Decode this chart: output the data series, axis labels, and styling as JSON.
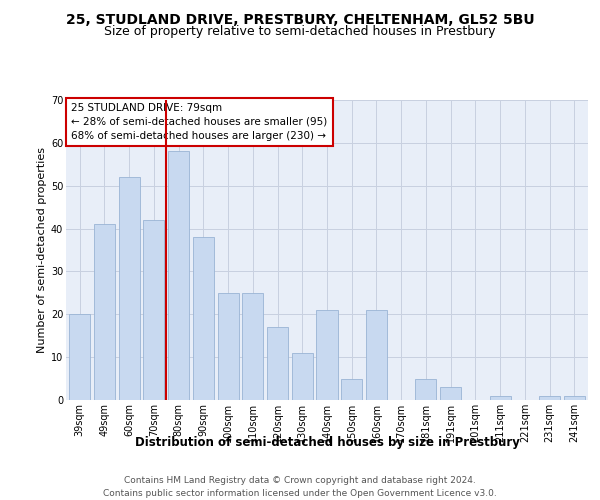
{
  "title": "25, STUDLAND DRIVE, PRESTBURY, CHELTENHAM, GL52 5BU",
  "subtitle": "Size of property relative to semi-detached houses in Prestbury",
  "xlabel": "Distribution of semi-detached houses by size in Prestbury",
  "ylabel": "Number of semi-detached properties",
  "categories": [
    "39sqm",
    "49sqm",
    "60sqm",
    "70sqm",
    "80sqm",
    "90sqm",
    "100sqm",
    "110sqm",
    "120sqm",
    "130sqm",
    "140sqm",
    "150sqm",
    "160sqm",
    "170sqm",
    "181sqm",
    "191sqm",
    "201sqm",
    "211sqm",
    "221sqm",
    "231sqm",
    "241sqm"
  ],
  "values": [
    20,
    41,
    52,
    42,
    58,
    38,
    25,
    25,
    17,
    11,
    21,
    5,
    21,
    0,
    5,
    3,
    0,
    1,
    0,
    1,
    1
  ],
  "bar_color": "#c8d9f0",
  "bar_edge_color": "#9ab4d4",
  "vline_x": 3.5,
  "vline_color": "#cc0000",
  "annotation_line1": "25 STUDLAND DRIVE: 79sqm",
  "annotation_line2": "← 28% of semi-detached houses are smaller (95)",
  "annotation_line3": "68% of semi-detached houses are larger (230) →",
  "annotation_box_facecolor": "#ffffff",
  "annotation_box_edgecolor": "#cc0000",
  "ylim_max": 70,
  "yticks": [
    0,
    10,
    20,
    30,
    40,
    50,
    60,
    70
  ],
  "footer_line1": "Contains HM Land Registry data © Crown copyright and database right 2024.",
  "footer_line2": "Contains public sector information licensed under the Open Government Licence v3.0.",
  "bg_color": "#ffffff",
  "plot_bg_color": "#e8eef8",
  "grid_color": "#c8d0e0",
  "title_fontsize": 10,
  "subtitle_fontsize": 9,
  "xlabel_fontsize": 8.5,
  "ylabel_fontsize": 8,
  "tick_fontsize": 7,
  "annotation_fontsize": 7.5,
  "footer_fontsize": 6.5
}
